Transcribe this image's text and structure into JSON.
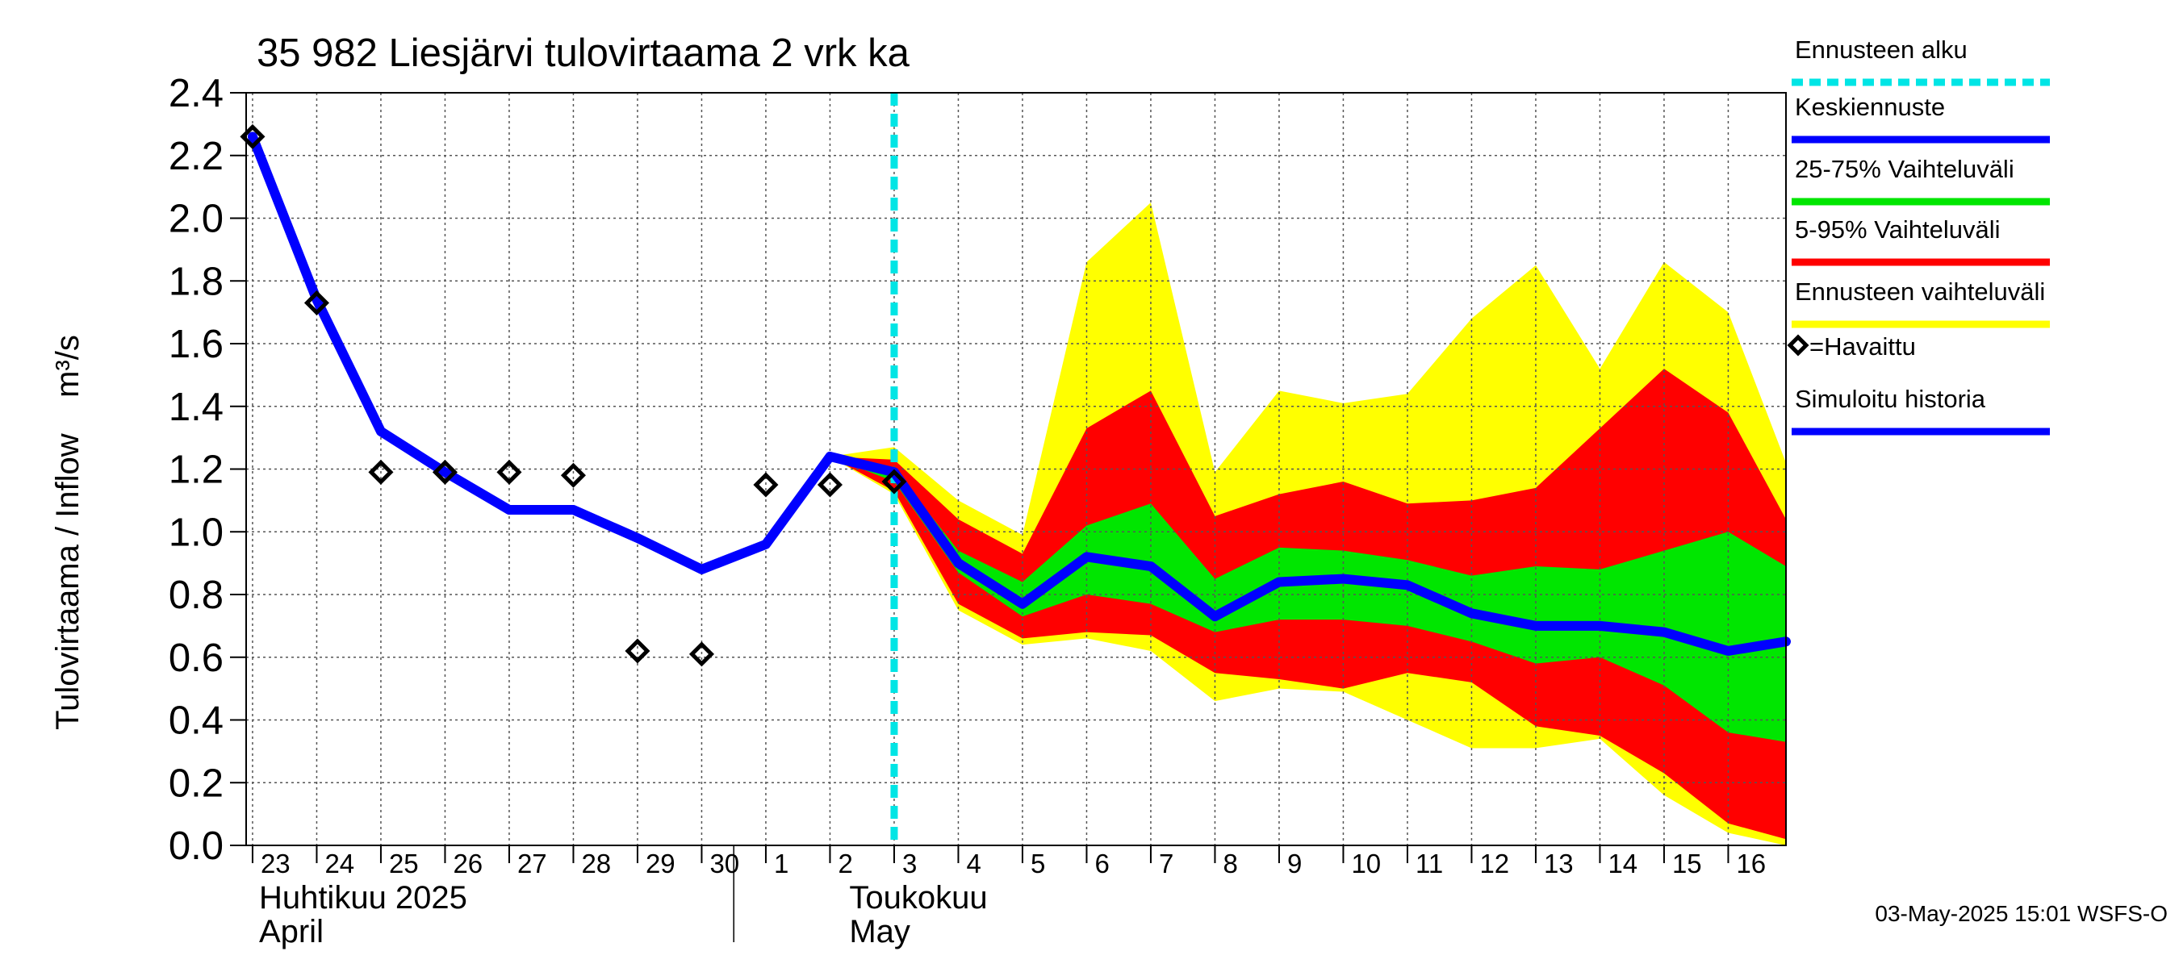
{
  "chart_data": {
    "type": "area",
    "title": "35 982 Liesjärvi tulovirtaama 2 vrk ka",
    "ylabel": "Tulovirtaama / Inflow    m³/s",
    "ylim": [
      0,
      2.4
    ],
    "yticks": [
      "0.0",
      "0.2",
      "0.4",
      "0.6",
      "0.8",
      "1.0",
      "1.2",
      "1.4",
      "1.6",
      "1.8",
      "2.0",
      "2.2",
      "2.4"
    ],
    "x_range_days": [
      -0.1,
      23.9
    ],
    "x_ticks": [
      "23",
      "24",
      "25",
      "26",
      "27",
      "28",
      "29",
      "30",
      "1",
      "2",
      "3",
      "4",
      "5",
      "6",
      "7",
      "8",
      "9",
      "10",
      "11",
      "12",
      "13",
      "14",
      "15",
      "16"
    ],
    "month_labels": [
      {
        "line1": "Huhtikuu  2025",
        "line2": "April",
        "day": 0
      },
      {
        "line1": "Toukokuu",
        "line2": "May",
        "day": 9.2
      }
    ],
    "month_separator_day": 8,
    "forecast_start_day": 10,
    "series": [
      {
        "name": "Ennusteen vaihteluväli",
        "color": "#ffff00",
        "kind": "band",
        "x": [
          9,
          10,
          11,
          12,
          13,
          14,
          15,
          16,
          17,
          18,
          19,
          20,
          21,
          22,
          23,
          23.9
        ],
        "upper": [
          1.24,
          1.27,
          1.1,
          0.99,
          1.86,
          2.05,
          1.19,
          1.45,
          1.41,
          1.44,
          1.68,
          1.85,
          1.52,
          1.86,
          1.7,
          1.22
        ],
        "lower": [
          1.24,
          1.12,
          0.75,
          0.64,
          0.66,
          0.62,
          0.46,
          0.5,
          0.49,
          0.4,
          0.31,
          0.31,
          0.34,
          0.16,
          0.04,
          0.0
        ]
      },
      {
        "name": "5-95% Vaihteluväli",
        "color": "#ff0000",
        "kind": "band",
        "x": [
          9,
          10,
          11,
          12,
          13,
          14,
          15,
          16,
          17,
          18,
          19,
          20,
          21,
          22,
          23,
          23.9
        ],
        "upper": [
          1.24,
          1.23,
          1.04,
          0.93,
          1.33,
          1.45,
          1.05,
          1.12,
          1.16,
          1.09,
          1.1,
          1.14,
          1.33,
          1.52,
          1.38,
          1.04
        ],
        "lower": [
          1.24,
          1.13,
          0.77,
          0.66,
          0.68,
          0.67,
          0.55,
          0.53,
          0.5,
          0.55,
          0.52,
          0.38,
          0.35,
          0.23,
          0.07,
          0.02
        ]
      },
      {
        "name": "25-75% Vaihteluväli",
        "color": "#00e600",
        "kind": "band",
        "x": [
          9,
          10,
          11,
          12,
          13,
          14,
          15,
          16,
          17,
          18,
          19,
          20,
          21,
          22,
          23,
          23.9
        ],
        "upper": [
          1.24,
          1.2,
          0.94,
          0.84,
          1.02,
          1.09,
          0.85,
          0.95,
          0.94,
          0.91,
          0.86,
          0.89,
          0.88,
          0.94,
          1.0,
          0.89
        ],
        "lower": [
          1.24,
          1.16,
          0.87,
          0.73,
          0.8,
          0.77,
          0.68,
          0.72,
          0.72,
          0.7,
          0.65,
          0.58,
          0.6,
          0.51,
          0.36,
          0.33
        ]
      },
      {
        "name": "Simuloitu historia",
        "color": "#0000ff",
        "kind": "line",
        "x": [
          0,
          1,
          2,
          3,
          4,
          5,
          6,
          7,
          8,
          9,
          10
        ],
        "y": [
          2.26,
          1.74,
          1.32,
          1.19,
          1.07,
          1.07,
          0.98,
          0.88,
          0.96,
          1.24,
          1.19
        ]
      },
      {
        "name": "Keskiennuste",
        "color": "#0000ff",
        "kind": "line",
        "x": [
          10,
          11,
          12,
          13,
          14,
          15,
          16,
          17,
          18,
          19,
          20,
          21,
          22,
          23,
          23.9
        ],
        "y": [
          1.19,
          0.9,
          0.77,
          0.92,
          0.89,
          0.73,
          0.84,
          0.85,
          0.83,
          0.74,
          0.7,
          0.7,
          0.68,
          0.62,
          0.65
        ]
      },
      {
        "name": "=Havaittu",
        "color": "#000000",
        "kind": "markers",
        "x": [
          0,
          1,
          2,
          3,
          4,
          5,
          6,
          7,
          8,
          9,
          10
        ],
        "y": [
          2.26,
          1.73,
          1.19,
          1.19,
          1.19,
          1.18,
          0.62,
          0.61,
          1.15,
          1.15,
          1.16
        ]
      }
    ],
    "legend": {
      "placement": "right",
      "items": [
        {
          "label": "Ennusteen alku",
          "color": "#00e5e5",
          "style": "dashed"
        },
        {
          "label": "Keskiennuste",
          "color": "#0000ff",
          "style": "line"
        },
        {
          "label": "25-75% Vaihteluväli",
          "color": "#00e600",
          "style": "line"
        },
        {
          "label": "5-95% Vaihteluväli",
          "color": "#ff0000",
          "style": "line"
        },
        {
          "label": "Ennusteen vaihteluväli",
          "color": "#ffff00",
          "style": "line"
        },
        {
          "label": "=Havaittu",
          "color": "#000000",
          "style": "diamond"
        },
        {
          "label": "Simuloitu historia",
          "color": "#0000ff",
          "style": "line"
        }
      ]
    },
    "grid": true,
    "footer": "03-May-2025 15:01 WSFS-O"
  }
}
